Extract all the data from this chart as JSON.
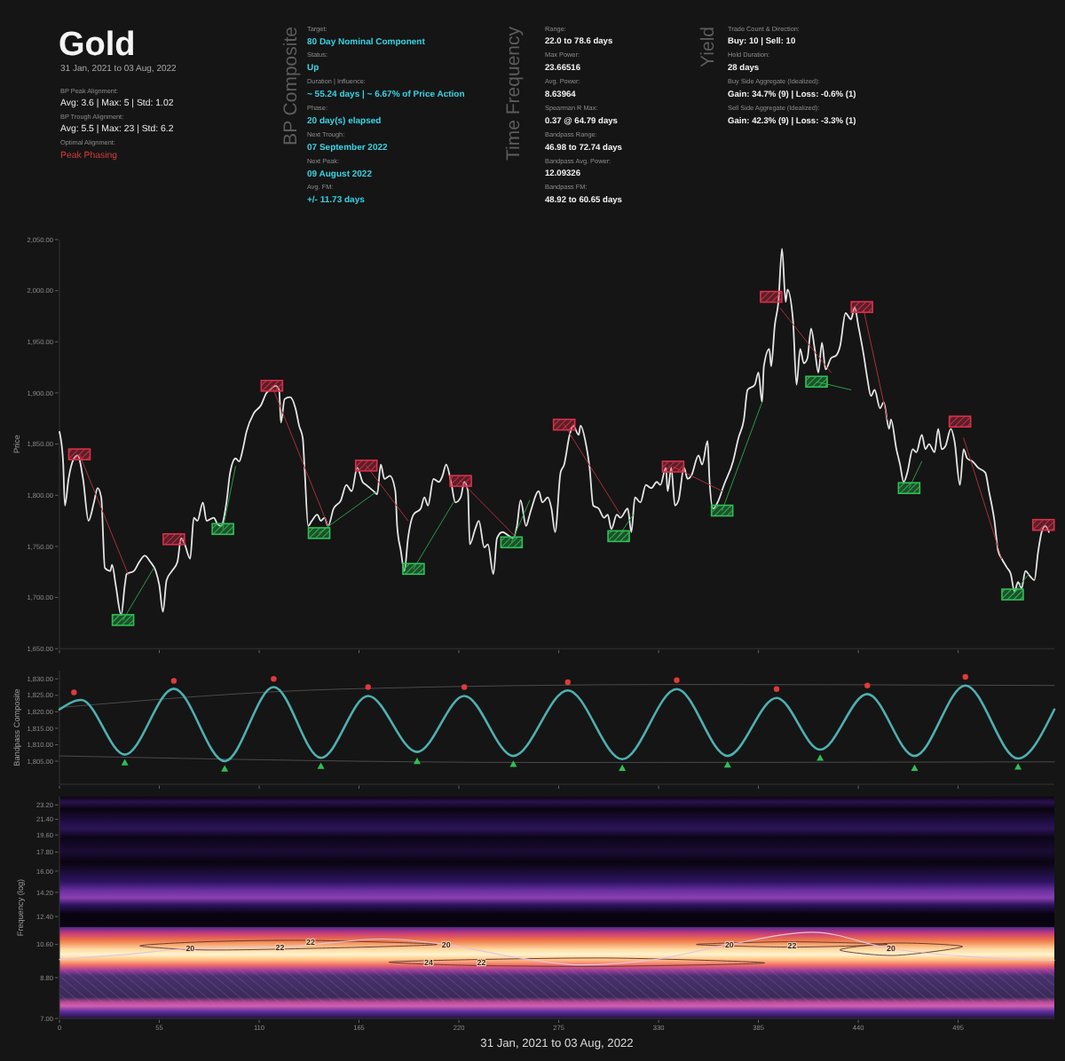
{
  "chart_data": [
    {
      "type": "other",
      "title": "Gold",
      "subtitle": "31 Jan, 2021 to 03 Aug, 2022",
      "annotations": [
        "BP Peak Alignment:",
        "Avg: 3.6 | Max: 5 | Std: 1.02",
        "BP Trough Alignment:",
        "Avg: 5.5 | Max: 23 | Std: 6.2",
        "Optimal Alignment:",
        "Peak Phasing",
        "BP Composite",
        "Target:",
        "80 Day Nominal Component",
        "Status:",
        "Up",
        "Duration | Influence:",
        "~ 55.24 days | ~ 6.67% of Price Action",
        "Phase:",
        "20 day(s) elapsed",
        "Next Trough:",
        "07 September 2022",
        "Next Peak:",
        "09 August 2022",
        "Avg. FM:",
        "+/- 11.73 days",
        "Time Frequency",
        "Range:",
        "22.0 to 78.6 days",
        "Max Power:",
        "23.66516",
        "Avg. Power:",
        "8.63964",
        "Spearman R Max:",
        "0.37 @ 64.79 days",
        "Bandpass Range:",
        "46.98 to 72.74 days",
        "Bandpass Avg. Power:",
        "12.09326",
        "Bandpass FM:",
        "48.92 to 60.65 days",
        "Yield",
        "Trade Count & Direction:",
        "Buy: 10 | Sell: 10",
        "Hold Duration:",
        "28 days",
        "Buy Side Aggregate (Idealized):",
        "Gain: 34.7% (9) | Loss: -0.6% (1)",
        "Sell Side Aggregate (Idealized):",
        "Gain: 42.3% (9) | Loss: -3.3% (1)"
      ]
    },
    {
      "type": "line",
      "ylabel": "Price",
      "xlim": [
        0,
        548
      ],
      "xticks": [
        {
          "value": 0,
          "label": null
        },
        {
          "value": 55,
          "label": null
        },
        {
          "value": 110,
          "label": null
        },
        {
          "value": 165,
          "label": null
        },
        {
          "value": 220,
          "label": null
        },
        {
          "value": 275,
          "label": null
        },
        {
          "value": 330,
          "label": null
        },
        {
          "value": 385,
          "label": null
        },
        {
          "value": 440,
          "label": null
        },
        {
          "value": 495,
          "label": null
        }
      ],
      "ylim": [
        1650,
        2050
      ],
      "yticks": [
        {
          "value": 1650,
          "label": "1,650.00"
        },
        {
          "value": 1700,
          "label": "1,700.00"
        },
        {
          "value": 1750,
          "label": "1,750.00"
        },
        {
          "value": 1800,
          "label": "1,800.00"
        },
        {
          "value": 1850,
          "label": "1,850.00"
        },
        {
          "value": 1900,
          "label": "1,900.00"
        },
        {
          "value": 1950,
          "label": "1,950.00"
        },
        {
          "value": 2000,
          "label": "2,000.00"
        },
        {
          "value": 2050,
          "label": "2,050.00"
        }
      ],
      "tick_labels": "y",
      "series": [
        {
          "type": "line",
          "color": "#e6e6e6",
          "x": [
            0,
            2,
            3,
            5,
            8,
            10,
            13,
            16,
            19,
            21,
            23,
            25,
            28,
            29,
            31,
            34,
            36,
            37,
            41,
            44,
            47,
            50,
            53,
            55,
            57,
            59,
            62,
            65,
            67,
            69,
            72,
            74,
            76,
            79,
            81,
            85,
            87,
            89,
            92,
            94,
            97,
            99,
            101,
            103,
            107,
            111,
            114,
            116,
            119,
            121,
            122,
            124,
            127,
            130,
            132,
            134,
            135,
            137,
            139,
            142,
            144,
            146,
            148,
            151,
            155,
            158,
            161,
            164,
            167,
            169,
            173,
            175,
            177,
            179,
            182,
            185,
            186,
            188,
            190,
            192,
            195,
            199,
            201,
            203,
            206,
            209,
            211,
            213,
            216,
            218,
            221,
            223,
            225,
            226,
            229,
            231,
            234,
            236,
            239,
            241,
            244,
            247,
            250,
            252,
            254,
            257,
            259,
            260,
            264,
            266,
            269,
            271,
            273,
            276,
            278,
            281,
            283,
            286,
            287,
            290,
            292,
            294,
            297,
            300,
            302,
            304,
            307,
            309,
            313,
            315,
            317,
            320,
            323,
            326,
            329,
            331,
            334,
            335,
            337,
            339,
            341,
            344,
            346,
            348,
            352,
            354,
            357,
            358,
            360,
            363,
            366,
            371,
            374,
            377,
            379,
            383,
            385,
            387,
            388,
            391,
            392,
            394,
            396,
            398,
            400,
            401,
            404,
            406,
            408,
            410,
            412,
            414,
            416,
            418,
            420,
            422,
            425,
            428,
            430,
            433,
            436,
            438,
            440,
            443,
            445,
            447,
            449,
            452,
            454,
            457,
            458,
            461,
            463,
            465,
            467,
            470,
            472,
            475,
            477,
            479,
            482,
            484,
            486,
            488,
            491,
            493,
            496,
            498,
            500,
            503,
            506,
            510,
            512,
            515,
            517,
            519,
            522,
            524,
            526,
            528,
            530,
            532,
            535,
            537,
            539,
            541,
            543,
            545
          ],
          "values": [
            1862,
            1833,
            1790,
            1816,
            1836,
            1839,
            1816,
            1775,
            1793,
            1807,
            1798,
            1729,
            1726,
            1732,
            1712,
            1683,
            1712,
            1723,
            1726,
            1735,
            1741,
            1735,
            1726,
            1712,
            1686,
            1717,
            1726,
            1735,
            1758,
            1752,
            1738,
            1778,
            1775,
            1793,
            1775,
            1778,
            1772,
            1770,
            1793,
            1822,
            1836,
            1833,
            1845,
            1862,
            1880,
            1888,
            1900,
            1903,
            1907,
            1903,
            1871,
            1894,
            1896,
            1885,
            1868,
            1856,
            1827,
            1770,
            1775,
            1781,
            1775,
            1778,
            1770,
            1787,
            1795,
            1810,
            1804,
            1827,
            1813,
            1810,
            1804,
            1801,
            1830,
            1816,
            1819,
            1804,
            1770,
            1746,
            1726,
            1758,
            1781,
            1787,
            1798,
            1790,
            1816,
            1813,
            1819,
            1830,
            1810,
            1793,
            1798,
            1813,
            1804,
            1752,
            1767,
            1775,
            1749,
            1752,
            1723,
            1758,
            1764,
            1761,
            1758,
            1770,
            1795,
            1770,
            1781,
            1787,
            1804,
            1793,
            1798,
            1787,
            1764,
            1822,
            1830,
            1859,
            1868,
            1859,
            1868,
            1850,
            1827,
            1790,
            1787,
            1778,
            1781,
            1767,
            1781,
            1778,
            1787,
            1764,
            1798,
            1793,
            1810,
            1807,
            1813,
            1810,
            1827,
            1804,
            1827,
            1790,
            1795,
            1827,
            1816,
            1819,
            1839,
            1830,
            1853,
            1816,
            1787,
            1795,
            1810,
            1833,
            1856,
            1874,
            1903,
            1908,
            1920,
            1891,
            1926,
            1943,
            1926,
            1966,
            1989,
            2041,
            1989,
            2001,
            1972,
            1908,
            1943,
            1929,
            1934,
            1963,
            1943,
            1920,
            1949,
            1923,
            1934,
            1937,
            1946,
            1978,
            1972,
            1984,
            1966,
            1937,
            1914,
            1897,
            1903,
            1885,
            1891,
            1865,
            1874,
            1845,
            1830,
            1813,
            1822,
            1845,
            1842,
            1859,
            1845,
            1850,
            1842,
            1865,
            1845,
            1848,
            1865,
            1853,
            1810,
            1845,
            1836,
            1833,
            1827,
            1822,
            1804,
            1775,
            1746,
            1738,
            1729,
            1723,
            1706,
            1715,
            1709,
            1726,
            1720,
            1717,
            1744,
            1764,
            1770,
            1764
          ]
        },
        {
          "type": "line",
          "color": "#a8303f",
          "x": [
            11,
            38,
            null,
            117,
            148,
            null,
            169,
            192,
            null,
            221,
            252,
            null,
            278,
            309,
            null,
            338,
            365,
            null,
            397,
            425,
            null,
            443,
            456,
            null,
            498,
            519
          ],
          "values": [
            1840,
            1722,
            null,
            1907,
            1770,
            null,
            1829,
            1775,
            null,
            1814,
            1758,
            null,
            1869,
            1781,
            null,
            1828,
            1804,
            null,
            1983,
            1920,
            null,
            1981,
            1874,
            null,
            1856,
            1738
          ]
        },
        {
          "type": "line",
          "color": "#2c9a48",
          "x": [
            35,
            52,
            null,
            90,
            97,
            null,
            143,
            175,
            null,
            195,
            217,
            null,
            249,
            259,
            null,
            308,
            316,
            null,
            365,
            387,
            null,
            417,
            436,
            null,
            468,
            475,
            null,
            525,
            534
          ],
          "values": [
            1678,
            1729,
            null,
            1767,
            1828,
            null,
            1763,
            1804,
            null,
            1728,
            1793,
            null,
            1754,
            1795,
            null,
            1760,
            1781,
            null,
            1785,
            1891,
            null,
            1911,
            1903,
            null,
            1807,
            1833,
            null,
            1703,
            1723
          ]
        },
        {
          "type": "scatter",
          "marker": "square",
          "color": "#d9304a",
          "x": [
            11,
            63,
            117,
            169,
            221,
            278,
            338,
            392,
            442,
            496,
            542
          ],
          "values": [
            1840,
            1757,
            1907,
            1829,
            1814,
            1869,
            1828,
            1994,
            1984,
            1872,
            1771
          ]
        },
        {
          "type": "scatter",
          "marker": "square",
          "color": "#2fbf55",
          "x": [
            35,
            90,
            143,
            195,
            249,
            308,
            365,
            417,
            468,
            525
          ],
          "values": [
            1678,
            1767,
            1763,
            1728,
            1754,
            1760,
            1785,
            1911,
            1807,
            1703
          ]
        }
      ]
    },
    {
      "type": "line",
      "ylabel": "Bandpass Composite",
      "xlim": [
        0,
        548
      ],
      "xticks": [
        {
          "value": 0,
          "label": null
        },
        {
          "value": 55,
          "label": null
        },
        {
          "value": 110,
          "label": null
        },
        {
          "value": 165,
          "label": null
        },
        {
          "value": 220,
          "label": null
        },
        {
          "value": 275,
          "label": null
        },
        {
          "value": 330,
          "label": null
        },
        {
          "value": 385,
          "label": null
        },
        {
          "value": 440,
          "label": null
        },
        {
          "value": 495,
          "label": null
        }
      ],
      "ylim": [
        1798,
        1832.5
      ],
      "yticks": [
        {
          "value": 1805,
          "label": "1,805.00"
        },
        {
          "value": 1810,
          "label": "1,810.00"
        },
        {
          "value": 1815,
          "label": "1,815.00"
        },
        {
          "value": 1820,
          "label": "1,820.00"
        },
        {
          "value": 1825,
          "label": "1,825.00"
        },
        {
          "value": 1830,
          "label": "1,830.00"
        }
      ],
      "tick_labels": "y",
      "series": [
        {
          "type": "line",
          "color": "#4a4a4a",
          "x": [
            0,
            155,
            343,
            548
          ],
          "values": [
            1821.3,
            1826.9,
            1828.3,
            1828.0
          ]
        },
        {
          "type": "line",
          "color": "#4a4a4a",
          "x": [
            0,
            268,
            548
          ],
          "values": [
            1806.6,
            1804.6,
            1804.8
          ]
        },
        {
          "type": "line",
          "color": "#4fb0b0",
          "x": [
            0,
            12,
            36,
            63,
            91,
            118,
            144,
            170,
            197,
            223,
            250,
            280,
            310,
            340,
            368,
            395,
            419,
            445,
            471,
            499,
            528,
            548
          ],
          "values": [
            1820.7,
            1823.6,
            1807.0,
            1827.0,
            1805.0,
            1827.5,
            1806.0,
            1824.8,
            1807.8,
            1824.8,
            1806.6,
            1826.5,
            1805.6,
            1826.9,
            1806.6,
            1824.2,
            1808.5,
            1825.4,
            1806.6,
            1828.0,
            1805.8,
            1820.7
          ]
        },
        {
          "type": "scatter",
          "marker": "circle",
          "color": "#e03a3a",
          "x": [
            8,
            63,
            118,
            170,
            223,
            280,
            340,
            395,
            445,
            499
          ],
          "values": [
            1825.9,
            1829.4,
            1830.0,
            1827.5,
            1827.5,
            1829.0,
            1829.6,
            1826.9,
            1828.0,
            1830.6
          ]
        },
        {
          "type": "scatter",
          "marker": "triangle",
          "color": "#2fbf55",
          "x": [
            36,
            91,
            144,
            197,
            250,
            310,
            368,
            419,
            471,
            528
          ],
          "values": [
            1804.6,
            1802.7,
            1803.5,
            1805.0,
            1804.1,
            1802.9,
            1803.9,
            1806.0,
            1802.9,
            1803.3
          ]
        }
      ]
    },
    {
      "type": "line",
      "xlabel": "31 Jan, 2021 to 03 Aug, 2022",
      "ylabel": "Frequency (log)",
      "xlim": [
        0,
        548
      ],
      "xticks": [
        0,
        55,
        110,
        165,
        220,
        275,
        330,
        385,
        440,
        495
      ],
      "ylim": [
        7,
        24.3
      ],
      "log": "y",
      "yticks": [
        {
          "value": 7,
          "label": "7.00"
        },
        {
          "value": 8.8,
          "label": "8.80"
        },
        {
          "value": 10.6,
          "label": "10.60"
        },
        {
          "value": 12.4,
          "label": "12.40"
        },
        {
          "value": 14.2,
          "label": "14.20"
        },
        {
          "value": 16,
          "label": "16.00"
        },
        {
          "value": 17.8,
          "label": "17.80"
        },
        {
          "value": 19.6,
          "label": "19.60"
        },
        {
          "value": 21.4,
          "label": "21.40"
        },
        {
          "value": 23.2,
          "label": "23.20"
        }
      ],
      "bands": [
        {
          "axis": "y",
          "from": 7.65,
          "to": 9.25,
          "color": "#9a9ab8"
        }
      ],
      "series": [
        {
          "type": "line",
          "color": "#e4c4dc",
          "x": [
            0,
            35,
            72,
            125,
            178,
            213,
            249,
            287,
            328,
            369,
            415,
            458,
            501,
            548
          ],
          "values": [
            9.74,
            10.01,
            10.36,
            10.47,
            10.93,
            10.6,
            9.9,
            9.45,
            9.74,
            10.6,
            11.35,
            10.36,
            9.9,
            9.7
          ]
        }
      ],
      "annotations": [
        {
          "text": "20",
          "x": 72,
          "y": 10.36
        },
        "22",
        "22",
        {
          "text": "20",
          "x": 213,
          "y": 10.6
        },
        "24",
        "22",
        {
          "text": "20",
          "x": 369,
          "y": 10.6
        },
        "22",
        {
          "text": "20",
          "x": 458,
          "y": 10.36
        }
      ]
    }
  ]
}
